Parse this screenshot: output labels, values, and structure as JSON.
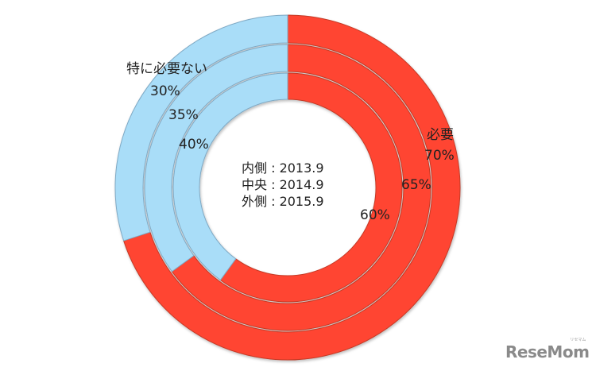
{
  "chart_data": {
    "type": "pie",
    "subtype": "multi-ring donut",
    "title": "",
    "categories": [
      "必要",
      "特に必要ない"
    ],
    "colors": {
      "必要": "#FF4530",
      "特に必要ない": "#A9DDF8"
    },
    "series": [
      {
        "name": "内側 : 2013.9",
        "ring": "inner",
        "values": [
          60,
          40
        ]
      },
      {
        "name": "中央 : 2014.9",
        "ring": "middle",
        "values": [
          65,
          35
        ]
      },
      {
        "name": "外側 : 2015.9",
        "ring": "outer",
        "values": [
          70,
          30
        ]
      }
    ],
    "legend_position": "center"
  },
  "labels": {
    "not_needed_title": "特に必要ない",
    "needed_title": "必要",
    "outer_not_needed": "30%",
    "middle_not_needed": "35%",
    "inner_not_needed": "40%",
    "outer_needed": "70%",
    "middle_needed": "65%",
    "inner_needed": "60%"
  },
  "legend": {
    "inner": "内側 : 2013.9",
    "middle": "中央 : 2014.9",
    "outer": "外側 : 2015.9"
  },
  "watermark": {
    "text": "ReseMom",
    "sub": "リセマム"
  }
}
